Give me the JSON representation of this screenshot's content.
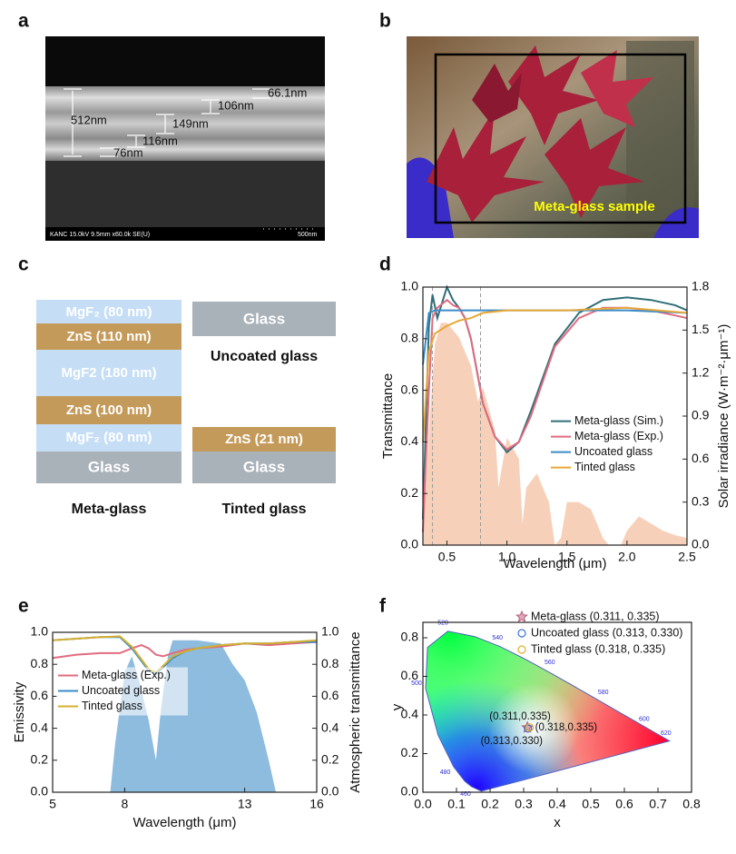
{
  "panel_labels": [
    "a",
    "b",
    "c",
    "d",
    "e",
    "f"
  ],
  "sem": {
    "measurements": [
      "66.1nm",
      "106nm",
      "149nm",
      "512nm",
      "116nm",
      "76nm"
    ],
    "footer": "KANC 15.0kV 9.5mm x60.0k SE(U)",
    "scale_bar": "500nm"
  },
  "photo": {
    "label": "Meta-glass sample"
  },
  "stacks": {
    "meta": {
      "layers": [
        "MgF₂ (80 nm)",
        "ZnS (110 nm)",
        "MgF2 (180 nm)",
        "ZnS (100 nm)",
        "MgF₂ (80 nm)",
        "Glass"
      ],
      "caption": "Meta-glass"
    },
    "uncoated": {
      "layers": [
        "Glass"
      ],
      "caption": "Uncoated glass"
    },
    "tinted": {
      "layers": [
        "ZnS (21 nm)",
        "Glass"
      ],
      "caption": "Tinted glass"
    }
  },
  "chart_data": [
    {
      "type": "line",
      "xlabel": "Wavelength (μm)",
      "ylabel": "Transmittance",
      "y2label": "Solar irradiance (W·m⁻²·μm⁻¹)",
      "xlim": [
        0.3,
        2.5
      ],
      "ylim": [
        0,
        1
      ],
      "y2lim": [
        0,
        1.8
      ],
      "xticks": [
        0.5,
        {
          "value": 1,
          "label": "1.0"
        },
        1.5,
        {
          "value": 2,
          "label": "2.0"
        },
        2.5
      ],
      "yticks": [
        {
          "value": 0,
          "label": "0.0"
        },
        0.2,
        0.4,
        0.6,
        0.8,
        {
          "value": 1,
          "label": "1.0"
        }
      ],
      "y2ticks": [
        {
          "value": 0,
          "label": "0.0"
        },
        0.3,
        0.6,
        0.9,
        1.2,
        1.5,
        1.8
      ],
      "vlines": [
        0.38,
        0.78
      ],
      "legend": "center right",
      "area": {
        "color": "#f6c8ae",
        "axis": "y2",
        "x": [
          0.3,
          0.35,
          0.4,
          0.45,
          0.5,
          0.6,
          0.7,
          0.76,
          0.8,
          0.9,
          0.93,
          0.96,
          1.0,
          1.1,
          1.13,
          1.16,
          1.25,
          1.35,
          1.4,
          1.45,
          1.5,
          1.6,
          1.7,
          1.8,
          1.85,
          1.95,
          2.0,
          2.1,
          2.2,
          2.3,
          2.4,
          2.5
        ],
        "values": [
          0.05,
          0.8,
          1.4,
          1.55,
          1.55,
          1.45,
          1.25,
          1.0,
          1.1,
          0.8,
          0.4,
          0.55,
          0.75,
          0.6,
          0.15,
          0.4,
          0.5,
          0.3,
          0.0,
          0.05,
          0.3,
          0.3,
          0.25,
          0.05,
          0.0,
          0.0,
          0.1,
          0.2,
          0.15,
          0.1,
          0.07,
          0.05
        ]
      },
      "series": [
        {
          "name": "Meta-glass (Sim.)",
          "color": "#2f6f78",
          "x": [
            0.3,
            0.35,
            0.38,
            0.42,
            0.5,
            0.55,
            0.6,
            0.65,
            0.7,
            0.8,
            0.9,
            1.0,
            1.1,
            1.2,
            1.4,
            1.6,
            1.8,
            2.0,
            2.2,
            2.4,
            2.5
          ],
          "values": [
            0.1,
            0.85,
            0.97,
            0.88,
            1.0,
            0.95,
            0.92,
            0.88,
            0.8,
            0.55,
            0.42,
            0.36,
            0.4,
            0.52,
            0.78,
            0.9,
            0.95,
            0.96,
            0.95,
            0.93,
            0.91
          ]
        },
        {
          "name": "Meta-glass (Exp.)",
          "color": "#e26b80",
          "x": [
            0.3,
            0.35,
            0.38,
            0.42,
            0.5,
            0.55,
            0.6,
            0.65,
            0.7,
            0.8,
            0.9,
            1.0,
            1.1,
            1.2,
            1.4,
            1.6,
            1.8,
            2.0,
            2.2,
            2.4,
            2.5
          ],
          "values": [
            0.05,
            0.6,
            0.88,
            0.92,
            0.95,
            0.93,
            0.92,
            0.88,
            0.8,
            0.55,
            0.42,
            0.37,
            0.4,
            0.5,
            0.77,
            0.88,
            0.92,
            0.92,
            0.91,
            0.89,
            0.88
          ]
        },
        {
          "name": "Uncoated glass",
          "color": "#3a8cc8",
          "x": [
            0.3,
            0.35,
            0.4,
            0.6,
            1.0,
            1.5,
            2.0,
            2.5
          ],
          "values": [
            0.7,
            0.9,
            0.91,
            0.91,
            0.91,
            0.91,
            0.91,
            0.9
          ]
        },
        {
          "name": "Tinted glass",
          "color": "#e8a838",
          "x": [
            0.3,
            0.35,
            0.4,
            0.5,
            0.6,
            0.7,
            0.8,
            1.0,
            1.5,
            2.0,
            2.5
          ],
          "values": [
            0.4,
            0.75,
            0.82,
            0.85,
            0.87,
            0.88,
            0.9,
            0.91,
            0.91,
            0.92,
            0.9
          ]
        }
      ]
    },
    {
      "type": "line",
      "xlabel": "Wavelength (μm)",
      "ylabel": "Emissivity",
      "y2label": "Atmospheric transmittance",
      "xlim": [
        5,
        16
      ],
      "ylim": [
        0,
        1
      ],
      "y2lim": [
        0,
        1
      ],
      "xticks": [
        5,
        8,
        13,
        16
      ],
      "yticks": [
        {
          "value": 0,
          "label": "0.0"
        },
        0.2,
        0.4,
        0.6,
        0.8,
        {
          "value": 1,
          "label": "1.0"
        }
      ],
      "y2ticks": [
        {
          "value": 0,
          "label": "0.0"
        },
        0.2,
        0.4,
        0.6,
        0.8,
        {
          "value": 1,
          "label": "1.0"
        }
      ],
      "legend": "center left",
      "area": {
        "color": "#7ab0d8",
        "axis": "y2",
        "x": [
          7.4,
          7.6,
          8,
          8.3,
          8.6,
          9,
          9.3,
          9.5,
          9.8,
          10,
          11,
          12,
          12.5,
          13,
          13.5,
          14,
          14.3
        ],
        "values": [
          0,
          0.3,
          0.75,
          0.85,
          0.7,
          0.45,
          0.2,
          0.5,
          0.85,
          0.95,
          0.95,
          0.93,
          0.8,
          0.7,
          0.5,
          0.2,
          0
        ]
      },
      "series": [
        {
          "name": "Meta-glass (Exp.)",
          "color": "#e26b80",
          "x": [
            5,
            6,
            7,
            7.8,
            8.3,
            8.7,
            9,
            9.3,
            9.6,
            10,
            10.5,
            11,
            12,
            13,
            14,
            15,
            16
          ],
          "values": [
            0.84,
            0.86,
            0.87,
            0.87,
            0.9,
            0.92,
            0.9,
            0.86,
            0.85,
            0.87,
            0.89,
            0.9,
            0.91,
            0.93,
            0.92,
            0.93,
            0.94
          ]
        },
        {
          "name": "Uncoated glass",
          "color": "#3a8cc8",
          "x": [
            5,
            6,
            7,
            7.8,
            8.3,
            8.7,
            9,
            9.3,
            9.6,
            10,
            10.5,
            11,
            12,
            13,
            14,
            15,
            16
          ],
          "values": [
            0.95,
            0.96,
            0.97,
            0.97,
            0.9,
            0.82,
            0.76,
            0.74,
            0.78,
            0.84,
            0.88,
            0.9,
            0.92,
            0.93,
            0.93,
            0.94,
            0.94
          ]
        },
        {
          "name": "Tinted glass",
          "color": "#d4b030",
          "x": [
            5,
            6,
            7,
            7.8,
            8.3,
            8.7,
            9,
            9.3,
            9.6,
            10,
            10.5,
            11,
            12,
            13,
            14,
            15,
            16
          ],
          "values": [
            0.95,
            0.96,
            0.97,
            0.975,
            0.91,
            0.83,
            0.77,
            0.75,
            0.79,
            0.85,
            0.88,
            0.9,
            0.92,
            0.93,
            0.93,
            0.94,
            0.95
          ]
        }
      ]
    },
    {
      "type": "scatter",
      "xlabel": "x",
      "ylabel": "y",
      "xlim": [
        0,
        0.8
      ],
      "ylim": [
        0,
        0.88
      ],
      "xticks": [
        {
          "value": 0,
          "label": "0.0"
        },
        0.1,
        0.2,
        0.3,
        0.4,
        0.5,
        0.6,
        0.7,
        0.8
      ],
      "yticks": [
        {
          "value": 0,
          "label": "0.0"
        },
        0.2,
        0.4,
        0.6,
        0.8
      ],
      "legend": "upper right",
      "locus": {
        "wavelengths": [
          null,
          460,
          null,
          480,
          null,
          500,
          null,
          520,
          null,
          540,
          null,
          560,
          null,
          580,
          null,
          600,
          620,
          null
        ],
        "x": [
          0.1741,
          0.144,
          0.1241,
          0.0913,
          0.0454,
          0.0082,
          0.0139,
          0.0743,
          0.1547,
          0.2296,
          0.3016,
          0.3731,
          0.4441,
          0.5125,
          0.5752,
          0.627,
          0.6915,
          0.7347
        ],
        "y": [
          0.005,
          0.0297,
          0.0578,
          0.1327,
          0.295,
          0.5384,
          0.7502,
          0.8338,
          0.8059,
          0.7543,
          0.6923,
          0.6245,
          0.5547,
          0.4866,
          0.4242,
          0.3725,
          0.3083,
          0.2653
        ]
      },
      "series": [
        {
          "name": "Meta-glass (0.311, 0.335)",
          "marker": "star",
          "color": "#b85a78",
          "x": [
            0.311
          ],
          "values": [
            0.335
          ]
        },
        {
          "name": "Uncoated glass (0.313, 0.330)",
          "marker": "circle",
          "color": "#3a6fd8",
          "x": [
            0.313
          ],
          "values": [
            0.33
          ]
        },
        {
          "name": "Tinted glass (0.318, 0.335)",
          "marker": "circle",
          "color": "#e0b030",
          "x": [
            0.318
          ],
          "values": [
            0.335
          ]
        }
      ],
      "annotations": [
        "(0.311,0.335)",
        "(0.318,0.335)",
        "(0.313,0.330)"
      ]
    }
  ]
}
